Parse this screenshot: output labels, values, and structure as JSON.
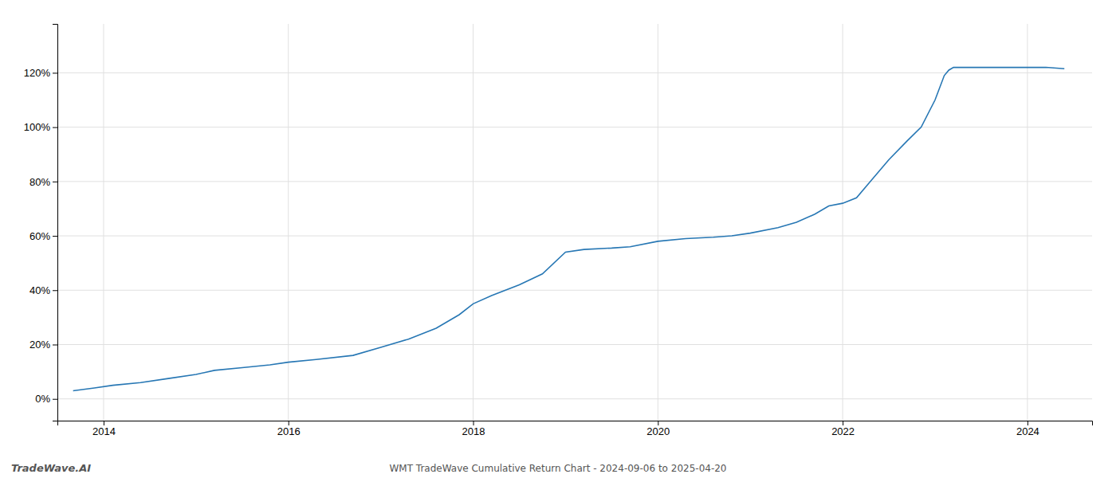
{
  "chart_data": {
    "type": "line",
    "title": "WMT TradeWave Cumulative Return Chart - 2024-09-06 to 2025-04-20",
    "annotations": [
      "TradeWave.AI"
    ],
    "color": "#2777b4",
    "grid": true,
    "x": [
      2013.67,
      2013.9,
      2014.1,
      2014.4,
      2014.7,
      2015.0,
      2015.2,
      2015.5,
      2015.8,
      2016.0,
      2016.3,
      2016.7,
      2017.0,
      2017.3,
      2017.6,
      2017.85,
      2018.0,
      2018.2,
      2018.5,
      2018.75,
      2019.0,
      2019.2,
      2019.5,
      2019.7,
      2020.0,
      2020.3,
      2020.6,
      2020.8,
      2021.0,
      2021.3,
      2021.5,
      2021.7,
      2021.85,
      2022.0,
      2022.15,
      2022.3,
      2022.5,
      2022.7,
      2022.85,
      2023.0,
      2023.1,
      2023.15,
      2023.2,
      2023.4,
      2023.6,
      2023.8,
      2024.0,
      2024.2,
      2024.4
    ],
    "values": [
      3,
      4,
      5,
      6,
      7.5,
      9,
      10.5,
      11.5,
      12.5,
      13.5,
      14.5,
      16,
      19,
      22,
      26,
      31,
      35,
      38,
      42,
      46,
      54,
      55,
      55.5,
      56,
      58,
      59,
      59.5,
      60,
      61,
      63,
      65,
      68,
      71,
      72,
      74,
      80,
      88,
      95,
      100,
      110,
      119,
      121,
      122,
      122,
      122,
      122,
      122,
      122,
      121.5
    ],
    "xlim": [
      2013.5,
      2024.7
    ],
    "xticks": [
      2014,
      2016,
      2018,
      2020,
      2022,
      2024
    ],
    "ylim": [
      -8,
      138
    ],
    "yticks": [
      {
        "value": 0,
        "label": "0%"
      },
      {
        "value": 20,
        "label": "20%"
      },
      {
        "value": 40,
        "label": "40%"
      },
      {
        "value": 60,
        "label": "60%"
      },
      {
        "value": 80,
        "label": "80%"
      },
      {
        "value": 100,
        "label": "100%"
      },
      {
        "value": 120,
        "label": "120%"
      }
    ]
  }
}
